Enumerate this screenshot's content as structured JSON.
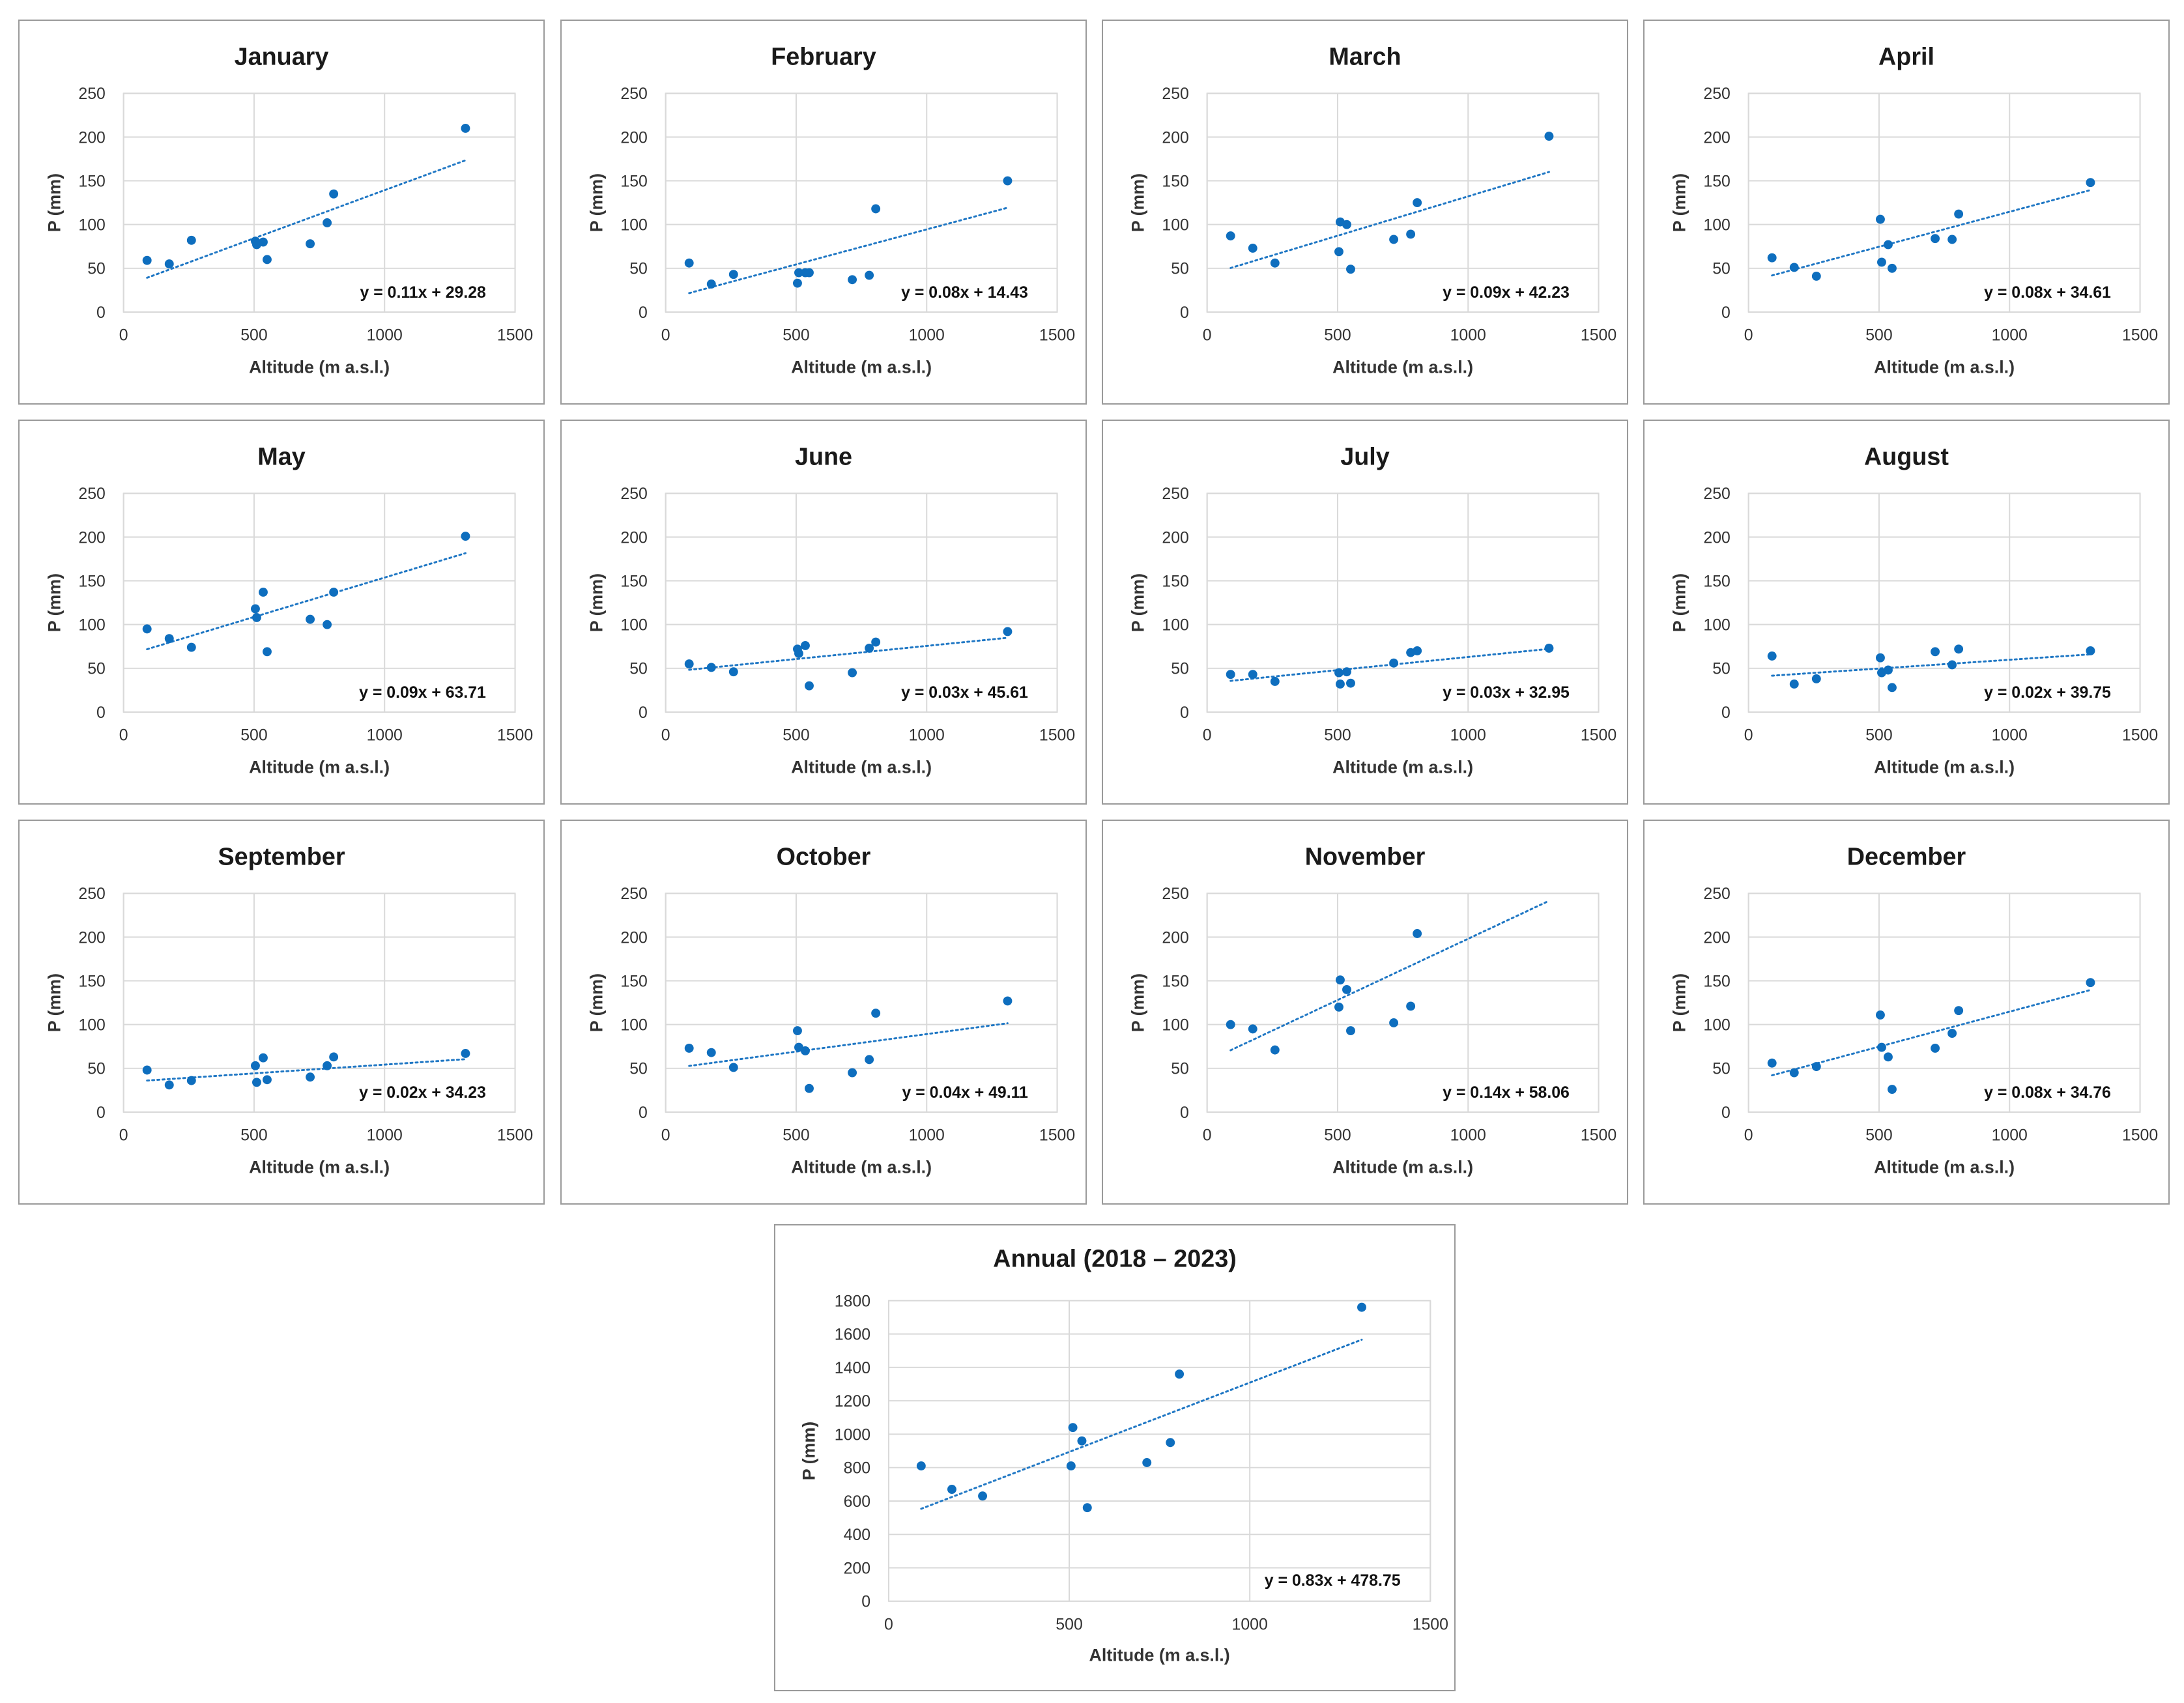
{
  "chart_data": [
    {
      "type": "scatter",
      "title": "January",
      "xlabel": "Altitude (m a.s.l.)",
      "ylabel": "P (mm)",
      "xlim": [
        0,
        1500
      ],
      "ylim": [
        0,
        250
      ],
      "xticks": [
        0,
        500,
        1000,
        1500
      ],
      "yticks": [
        0,
        50,
        100,
        150,
        200,
        250
      ],
      "equation": "y = 0.11x + 29.28",
      "trend": {
        "slope": 0.11,
        "intercept": 29.28,
        "x_range": [
          90,
          1310
        ]
      },
      "points": [
        {
          "x": 90,
          "y": 59
        },
        {
          "x": 175,
          "y": 55
        },
        {
          "x": 260,
          "y": 82
        },
        {
          "x": 505,
          "y": 81
        },
        {
          "x": 510,
          "y": 77
        },
        {
          "x": 535,
          "y": 80
        },
        {
          "x": 550,
          "y": 60
        },
        {
          "x": 715,
          "y": 78
        },
        {
          "x": 780,
          "y": 102
        },
        {
          "x": 805,
          "y": 135
        },
        {
          "x": 1310,
          "y": 210
        }
      ]
    },
    {
      "type": "scatter",
      "title": "February",
      "xlabel": "Altitude (m a.s.l.)",
      "ylabel": "P (mm)",
      "xlim": [
        0,
        1500
      ],
      "ylim": [
        0,
        250
      ],
      "xticks": [
        0,
        500,
        1000,
        1500
      ],
      "yticks": [
        0,
        50,
        100,
        150,
        200,
        250
      ],
      "equation": "y = 0.08x + 14.43",
      "trend": {
        "slope": 0.08,
        "intercept": 14.43,
        "x_range": [
          90,
          1310
        ]
      },
      "points": [
        {
          "x": 90,
          "y": 56
        },
        {
          "x": 175,
          "y": 32
        },
        {
          "x": 260,
          "y": 43
        },
        {
          "x": 505,
          "y": 33
        },
        {
          "x": 510,
          "y": 45
        },
        {
          "x": 535,
          "y": 45
        },
        {
          "x": 550,
          "y": 45
        },
        {
          "x": 715,
          "y": 37
        },
        {
          "x": 780,
          "y": 42
        },
        {
          "x": 805,
          "y": 118
        },
        {
          "x": 1310,
          "y": 150
        }
      ]
    },
    {
      "type": "scatter",
      "title": "March",
      "xlabel": "Altitude (m a.s.l.)",
      "ylabel": "P (mm)",
      "xlim": [
        0,
        1500
      ],
      "ylim": [
        0,
        250
      ],
      "xticks": [
        0,
        500,
        1000,
        1500
      ],
      "yticks": [
        0,
        50,
        100,
        150,
        200,
        250
      ],
      "equation": "y = 0.09x + 42.23",
      "trend": {
        "slope": 0.09,
        "intercept": 42.23,
        "x_range": [
          90,
          1310
        ]
      },
      "points": [
        {
          "x": 90,
          "y": 87
        },
        {
          "x": 175,
          "y": 73
        },
        {
          "x": 260,
          "y": 56
        },
        {
          "x": 505,
          "y": 69
        },
        {
          "x": 510,
          "y": 103
        },
        {
          "x": 535,
          "y": 100
        },
        {
          "x": 550,
          "y": 49
        },
        {
          "x": 715,
          "y": 83
        },
        {
          "x": 780,
          "y": 89
        },
        {
          "x": 805,
          "y": 125
        },
        {
          "x": 1310,
          "y": 201
        }
      ]
    },
    {
      "type": "scatter",
      "title": "April",
      "xlabel": "Altitude (m a.s.l.)",
      "ylabel": "P (mm)",
      "xlim": [
        0,
        1500
      ],
      "ylim": [
        0,
        250
      ],
      "xticks": [
        0,
        500,
        1000,
        1500
      ],
      "yticks": [
        0,
        50,
        100,
        150,
        200,
        250
      ],
      "equation": "y = 0.08x + 34.61",
      "trend": {
        "slope": 0.08,
        "intercept": 34.61,
        "x_range": [
          90,
          1310
        ]
      },
      "points": [
        {
          "x": 90,
          "y": 62
        },
        {
          "x": 175,
          "y": 51
        },
        {
          "x": 260,
          "y": 41
        },
        {
          "x": 505,
          "y": 106
        },
        {
          "x": 510,
          "y": 57
        },
        {
          "x": 535,
          "y": 77
        },
        {
          "x": 550,
          "y": 50
        },
        {
          "x": 715,
          "y": 84
        },
        {
          "x": 780,
          "y": 83
        },
        {
          "x": 805,
          "y": 112
        },
        {
          "x": 1310,
          "y": 148
        }
      ]
    },
    {
      "type": "scatter",
      "title": "May",
      "xlabel": "Altitude (m a.s.l.)",
      "ylabel": "P (mm)",
      "xlim": [
        0,
        1500
      ],
      "ylim": [
        0,
        250
      ],
      "xticks": [
        0,
        500,
        1000,
        1500
      ],
      "yticks": [
        0,
        50,
        100,
        150,
        200,
        250
      ],
      "equation": "y = 0.09x + 63.71",
      "trend": {
        "slope": 0.09,
        "intercept": 63.71,
        "x_range": [
          90,
          1310
        ]
      },
      "points": [
        {
          "x": 90,
          "y": 95
        },
        {
          "x": 175,
          "y": 84
        },
        {
          "x": 260,
          "y": 74
        },
        {
          "x": 505,
          "y": 118
        },
        {
          "x": 510,
          "y": 108
        },
        {
          "x": 535,
          "y": 137
        },
        {
          "x": 550,
          "y": 69
        },
        {
          "x": 715,
          "y": 106
        },
        {
          "x": 780,
          "y": 100
        },
        {
          "x": 805,
          "y": 137
        },
        {
          "x": 1310,
          "y": 201
        }
      ]
    },
    {
      "type": "scatter",
      "title": "June",
      "xlabel": "Altitude (m a.s.l.)",
      "ylabel": "P (mm)",
      "xlim": [
        0,
        1500
      ],
      "ylim": [
        0,
        250
      ],
      "xticks": [
        0,
        500,
        1000,
        1500
      ],
      "yticks": [
        0,
        50,
        100,
        150,
        200,
        250
      ],
      "equation": "y = 0.03x + 45.61",
      "trend": {
        "slope": 0.03,
        "intercept": 45.61,
        "x_range": [
          90,
          1310
        ]
      },
      "points": [
        {
          "x": 90,
          "y": 55
        },
        {
          "x": 175,
          "y": 51
        },
        {
          "x": 260,
          "y": 46
        },
        {
          "x": 505,
          "y": 72
        },
        {
          "x": 510,
          "y": 67
        },
        {
          "x": 535,
          "y": 76
        },
        {
          "x": 550,
          "y": 30
        },
        {
          "x": 715,
          "y": 45
        },
        {
          "x": 780,
          "y": 73
        },
        {
          "x": 805,
          "y": 80
        },
        {
          "x": 1310,
          "y": 92
        }
      ]
    },
    {
      "type": "scatter",
      "title": "July",
      "xlabel": "Altitude (m a.s.l.)",
      "ylabel": "P (mm)",
      "xlim": [
        0,
        1500
      ],
      "ylim": [
        0,
        250
      ],
      "xticks": [
        0,
        500,
        1000,
        1500
      ],
      "yticks": [
        0,
        50,
        100,
        150,
        200,
        250
      ],
      "equation": "y = 0.03x + 32.95",
      "trend": {
        "slope": 0.03,
        "intercept": 32.95,
        "x_range": [
          90,
          1310
        ]
      },
      "points": [
        {
          "x": 90,
          "y": 43
        },
        {
          "x": 175,
          "y": 43
        },
        {
          "x": 260,
          "y": 35
        },
        {
          "x": 505,
          "y": 45
        },
        {
          "x": 510,
          "y": 32
        },
        {
          "x": 535,
          "y": 46
        },
        {
          "x": 550,
          "y": 33
        },
        {
          "x": 715,
          "y": 56
        },
        {
          "x": 780,
          "y": 68
        },
        {
          "x": 805,
          "y": 70
        },
        {
          "x": 1310,
          "y": 73
        }
      ]
    },
    {
      "type": "scatter",
      "title": "August",
      "xlabel": "Altitude (m a.s.l.)",
      "ylabel": "P (mm)",
      "xlim": [
        0,
        1500
      ],
      "ylim": [
        0,
        250
      ],
      "xticks": [
        0,
        500,
        1000,
        1500
      ],
      "yticks": [
        0,
        50,
        100,
        150,
        200,
        250
      ],
      "equation": "y = 0.02x + 39.75",
      "trend": {
        "slope": 0.02,
        "intercept": 39.75,
        "x_range": [
          90,
          1310
        ]
      },
      "points": [
        {
          "x": 90,
          "y": 64
        },
        {
          "x": 175,
          "y": 32
        },
        {
          "x": 260,
          "y": 38
        },
        {
          "x": 505,
          "y": 62
        },
        {
          "x": 510,
          "y": 45
        },
        {
          "x": 535,
          "y": 48
        },
        {
          "x": 550,
          "y": 28
        },
        {
          "x": 715,
          "y": 69
        },
        {
          "x": 780,
          "y": 54
        },
        {
          "x": 805,
          "y": 72
        },
        {
          "x": 1310,
          "y": 70
        }
      ]
    },
    {
      "type": "scatter",
      "title": "September",
      "xlabel": "Altitude (m a.s.l.)",
      "ylabel": "P (mm)",
      "xlim": [
        0,
        1500
      ],
      "ylim": [
        0,
        250
      ],
      "xticks": [
        0,
        500,
        1000,
        1500
      ],
      "yticks": [
        0,
        50,
        100,
        150,
        200,
        250
      ],
      "equation": "y = 0.02x + 34.23",
      "trend": {
        "slope": 0.02,
        "intercept": 34.23,
        "x_range": [
          90,
          1310
        ]
      },
      "points": [
        {
          "x": 90,
          "y": 48
        },
        {
          "x": 175,
          "y": 31
        },
        {
          "x": 260,
          "y": 36
        },
        {
          "x": 505,
          "y": 53
        },
        {
          "x": 510,
          "y": 34
        },
        {
          "x": 535,
          "y": 62
        },
        {
          "x": 550,
          "y": 37
        },
        {
          "x": 715,
          "y": 40
        },
        {
          "x": 780,
          "y": 53
        },
        {
          "x": 805,
          "y": 63
        },
        {
          "x": 1310,
          "y": 67
        }
      ]
    },
    {
      "type": "scatter",
      "title": "October",
      "xlabel": "Altitude (m a.s.l.)",
      "ylabel": "P (mm)",
      "xlim": [
        0,
        1500
      ],
      "ylim": [
        0,
        250
      ],
      "xticks": [
        0,
        500,
        1000,
        1500
      ],
      "yticks": [
        0,
        50,
        100,
        150,
        200,
        250
      ],
      "equation": "y = 0.04x + 49.11",
      "trend": {
        "slope": 0.04,
        "intercept": 49.11,
        "x_range": [
          90,
          1310
        ]
      },
      "points": [
        {
          "x": 90,
          "y": 73
        },
        {
          "x": 175,
          "y": 68
        },
        {
          "x": 260,
          "y": 51
        },
        {
          "x": 505,
          "y": 93
        },
        {
          "x": 510,
          "y": 74
        },
        {
          "x": 535,
          "y": 70
        },
        {
          "x": 550,
          "y": 27
        },
        {
          "x": 715,
          "y": 45
        },
        {
          "x": 780,
          "y": 60
        },
        {
          "x": 805,
          "y": 113
        },
        {
          "x": 1310,
          "y": 127
        }
      ]
    },
    {
      "type": "scatter",
      "title": "November",
      "xlabel": "Altitude (m a.s.l.)",
      "ylabel": "P (mm)",
      "xlim": [
        0,
        1500
      ],
      "ylim": [
        0,
        250
      ],
      "xticks": [
        0,
        500,
        1000,
        1500
      ],
      "yticks": [
        0,
        50,
        100,
        150,
        200,
        250
      ],
      "equation": "y = 0.14x + 58.06",
      "trend": {
        "slope": 0.14,
        "intercept": 58.06,
        "x_range": [
          90,
          1310
        ]
      },
      "points": [
        {
          "x": 90,
          "y": 100
        },
        {
          "x": 175,
          "y": 95
        },
        {
          "x": 260,
          "y": 71
        },
        {
          "x": 505,
          "y": 120
        },
        {
          "x": 510,
          "y": 151
        },
        {
          "x": 535,
          "y": 140
        },
        {
          "x": 550,
          "y": 93
        },
        {
          "x": 715,
          "y": 102
        },
        {
          "x": 780,
          "y": 121
        },
        {
          "x": 805,
          "y": 204
        }
      ]
    },
    {
      "type": "scatter",
      "title": "December",
      "xlabel": "Altitude (m a.s.l.)",
      "ylabel": "P (mm)",
      "xlim": [
        0,
        1500
      ],
      "ylim": [
        0,
        250
      ],
      "xticks": [
        0,
        500,
        1000,
        1500
      ],
      "yticks": [
        0,
        50,
        100,
        150,
        200,
        250
      ],
      "equation": "y = 0.08x + 34.76",
      "trend": {
        "slope": 0.08,
        "intercept": 34.76,
        "x_range": [
          90,
          1310
        ]
      },
      "points": [
        {
          "x": 90,
          "y": 56
        },
        {
          "x": 175,
          "y": 45
        },
        {
          "x": 260,
          "y": 52
        },
        {
          "x": 505,
          "y": 111
        },
        {
          "x": 510,
          "y": 74
        },
        {
          "x": 535,
          "y": 63
        },
        {
          "x": 550,
          "y": 26
        },
        {
          "x": 715,
          "y": 73
        },
        {
          "x": 780,
          "y": 90
        },
        {
          "x": 805,
          "y": 116
        },
        {
          "x": 1310,
          "y": 148
        }
      ]
    },
    {
      "type": "scatter",
      "title": "Annual (2018 – 2023)",
      "xlabel": "Altitude (m a.s.l.)",
      "ylabel": "P (mm)",
      "xlim": [
        0,
        1500
      ],
      "ylim": [
        0,
        1800
      ],
      "xticks": [
        0,
        500,
        1000,
        1500
      ],
      "yticks": [
        0,
        200,
        400,
        600,
        800,
        1000,
        1200,
        1400,
        1600,
        1800
      ],
      "equation": "y = 0.83x + 478.75",
      "trend": {
        "slope": 0.83,
        "intercept": 478.75,
        "x_range": [
          90,
          1310
        ]
      },
      "points": [
        {
          "x": 90,
          "y": 810
        },
        {
          "x": 175,
          "y": 670
        },
        {
          "x": 260,
          "y": 630
        },
        {
          "x": 505,
          "y": 810
        },
        {
          "x": 510,
          "y": 1040
        },
        {
          "x": 535,
          "y": 960
        },
        {
          "x": 550,
          "y": 560
        },
        {
          "x": 715,
          "y": 830
        },
        {
          "x": 780,
          "y": 950
        },
        {
          "x": 805,
          "y": 1360
        },
        {
          "x": 1310,
          "y": 1760
        }
      ]
    }
  ]
}
